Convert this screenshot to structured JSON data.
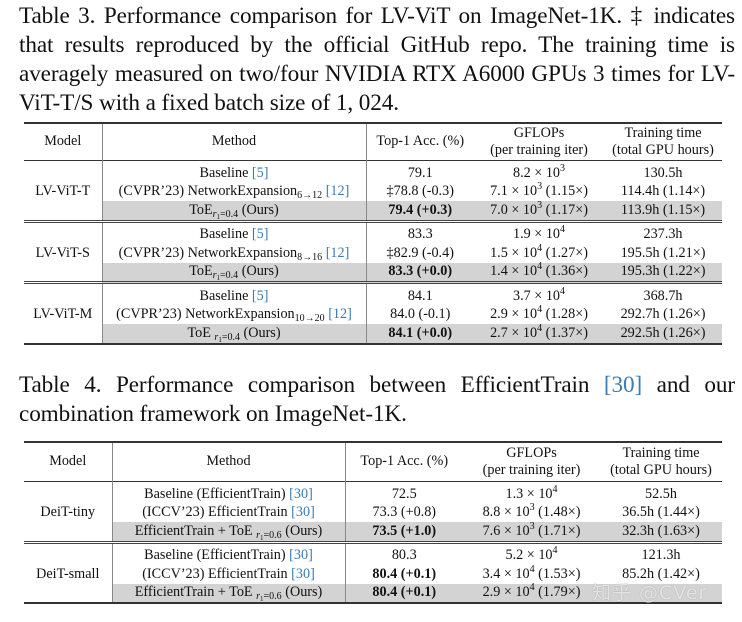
{
  "table3": {
    "caption": {
      "label": "Table 3.",
      "text_before_dagger": " Performance comparison for LV-ViT on ImageNet-1K. ",
      "dagger": "‡",
      "text_after_dagger": " indicates that results reproduced by the official GitHub repo. The training time is averagely measured on two/four NVIDIA RTX A6000 GPUs 3 times for LV-ViT-T/S with a fixed batch size of 1, 024."
    },
    "headers": {
      "model": "Model",
      "method": "Method",
      "top1": "Top-1 Acc. (%)",
      "gflops_line1": "GFLOPs",
      "gflops_line2": "(per training iter)",
      "time_line1": "Training time",
      "time_line2": "(total GPU hours)"
    },
    "groups": [
      {
        "model": "LV-ViT-T",
        "rows": [
          {
            "method": "Baseline",
            "method_sub": "",
            "cite": "[5]",
            "method_suffix": "",
            "top1": "79.1",
            "gflops_base": "8.2 × 10",
            "gflops_exp": "3",
            "gflops_ratio": "",
            "time": "130.5h",
            "bold": false,
            "shaded": false
          },
          {
            "method": "(CVPR’23) NetworkExpansion",
            "method_sub": "6→12",
            "cite": "[12]",
            "method_suffix": "",
            "top1": "‡78.8 (-0.3)",
            "gflops_base": "7.1 × 10",
            "gflops_exp": "3",
            "gflops_ratio": " (1.15×)",
            "time": "114.4h (1.14×)",
            "bold": false,
            "shaded": false
          },
          {
            "method": "ToE",
            "method_sub": "r1=0.4",
            "cite": "",
            "method_suffix": " (Ours)",
            "top1": "79.4 (+0.3)",
            "gflops_base": "7.0 × 10",
            "gflops_exp": "3",
            "gflops_ratio": " (1.17×)",
            "time": "113.9h (1.15×)",
            "bold": true,
            "shaded": true
          }
        ]
      },
      {
        "model": "LV-ViT-S",
        "rows": [
          {
            "method": "Baseline",
            "method_sub": "",
            "cite": "[5]",
            "method_suffix": "",
            "top1": "83.3",
            "gflops_base": "1.9 × 10",
            "gflops_exp": "4",
            "gflops_ratio": "",
            "time": "237.3h",
            "bold": false,
            "shaded": false
          },
          {
            "method": "(CVPR’23) NetworkExpansion",
            "method_sub": "8→16",
            "cite": "[12]",
            "method_suffix": "",
            "top1": "‡82.9 (-0.4)",
            "gflops_base": "1.5 × 10",
            "gflops_exp": "4",
            "gflops_ratio": " (1.27×)",
            "time": "195.5h (1.21×)",
            "bold": false,
            "shaded": false
          },
          {
            "method": "ToE",
            "method_sub": "r1=0.4",
            "cite": "",
            "method_suffix": " (Ours)",
            "top1": "83.3 (+0.0)",
            "gflops_base": "1.4 × 10",
            "gflops_exp": "4",
            "gflops_ratio": " (1.36×)",
            "time": "195.3h (1.22×)",
            "bold": true,
            "shaded": true
          }
        ]
      },
      {
        "model": "LV-ViT-M",
        "rows": [
          {
            "method": "Baseline",
            "method_sub": "",
            "cite": "[5]",
            "method_suffix": "",
            "top1": "84.1",
            "gflops_base": "3.7 × 10",
            "gflops_exp": "4",
            "gflops_ratio": "",
            "time": "368.7h",
            "bold": false,
            "shaded": false
          },
          {
            "method": "(CVPR’23) NetworkExpansion",
            "method_sub": "10→20",
            "cite": "[12]",
            "method_suffix": "",
            "top1": "84.0 (-0.1)",
            "gflops_base": "2.9 × 10",
            "gflops_exp": "4",
            "gflops_ratio": " (1.28×)",
            "time": "292.7h (1.26×)",
            "bold": false,
            "shaded": false
          },
          {
            "method": "ToE ",
            "method_sub": "r1=0.4",
            "cite": "",
            "method_suffix": " (Ours)",
            "top1": "84.1 (+0.0)",
            "gflops_base": "2.7 × 10",
            "gflops_exp": "4",
            "gflops_ratio": " (1.37×)",
            "time": "292.5h (1.26×)",
            "bold": true,
            "shaded": true
          }
        ]
      }
    ]
  },
  "table4": {
    "caption": {
      "label": "Table 4.",
      "text_before_cite": " Performance comparison between EfficientTrain ",
      "cite": "[30]",
      "text_after_cite": " and our combination framework on ImageNet-1K."
    },
    "headers": {
      "model": "Model",
      "method": "Method",
      "top1": "Top-1 Acc. (%)",
      "gflops_line1": "GFLOPs",
      "gflops_line2": "(per training iter)",
      "time_line1": "Training time",
      "time_line2": "(total GPU hours)"
    },
    "groups": [
      {
        "model": "DeiT-tiny",
        "rows": [
          {
            "method": "Baseline (EfficientTrain) ",
            "method_sub": "",
            "cite": "[30]",
            "method_suffix": "",
            "top1": "72.5",
            "top1_bold": false,
            "gflops_base": "1.3 × 10",
            "gflops_exp": "4",
            "gflops_ratio": "",
            "time": "52.5h",
            "shaded": false
          },
          {
            "method": "(ICCV’23) EfficientTrain ",
            "method_sub": "",
            "cite": "[30]",
            "method_suffix": "",
            "top1": "73.3 (+0.8)",
            "top1_bold": false,
            "gflops_base": "8.8 × 10",
            "gflops_exp": "3",
            "gflops_ratio": " (1.48×)",
            "time": "36.5h (1.44×)",
            "shaded": false
          },
          {
            "method": "EfficientTrain + ToE ",
            "method_sub": "r1=0.6",
            "cite": "",
            "method_suffix": " (Ours)",
            "top1": "73.5 (+1.0)",
            "top1_bold": true,
            "gflops_base": "7.6 × 10",
            "gflops_exp": "3",
            "gflops_ratio": " (1.71×)",
            "time": "32.3h (1.63×)",
            "shaded": true
          }
        ]
      },
      {
        "model": "DeiT-small",
        "rows": [
          {
            "method": "Baseline (EfficientTrain) ",
            "method_sub": "",
            "cite": "[30]",
            "method_suffix": "",
            "top1": "80.3",
            "top1_bold": false,
            "gflops_base": "5.2 × 10",
            "gflops_exp": "4",
            "gflops_ratio": "",
            "time": "121.3h",
            "shaded": false
          },
          {
            "method": "(ICCV’23) EfficientTrain ",
            "method_sub": "",
            "cite": "[30]",
            "method_suffix": "",
            "top1": "80.4 (+0.1)",
            "top1_bold": true,
            "gflops_base": "3.4 × 10",
            "gflops_exp": "4",
            "gflops_ratio": " (1.53×)",
            "time": "85.2h (1.42×)",
            "shaded": false
          },
          {
            "method": "EfficientTrain + ToE ",
            "method_sub": "r1=0.6",
            "cite": "",
            "method_suffix": " (Ours)",
            "top1": "80.4 (+0.1)",
            "top1_bold": true,
            "gflops_base": "2.9 × 10",
            "gflops_exp": "4",
            "gflops_ratio": " (1.79×)",
            "time": "",
            "shaded": true
          }
        ]
      }
    ]
  },
  "watermark": "知乎 @CVer",
  "colors": {
    "citation": "#3b7bb0",
    "highlight_row": "#d3d3d3",
    "rule": "#333333"
  }
}
